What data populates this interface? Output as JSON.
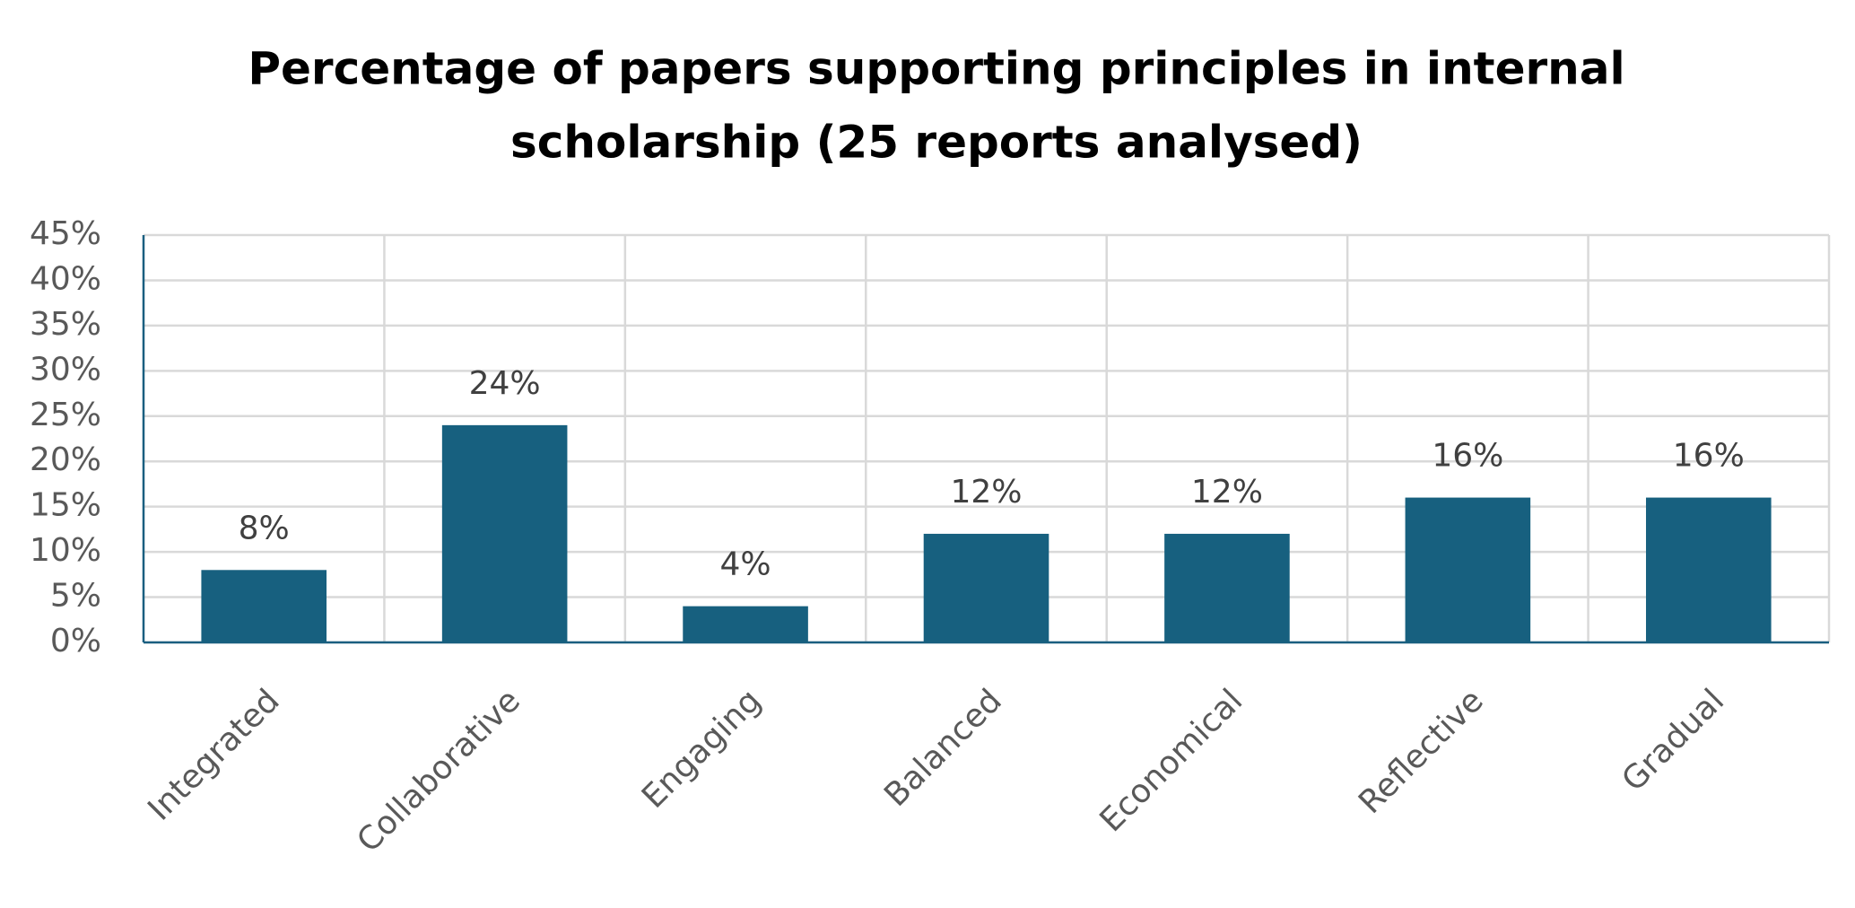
{
  "chart_data": {
    "type": "bar",
    "title": [
      "Percentage of papers supporting principles in internal",
      "scholarship (25 reports analysed)"
    ],
    "categories": [
      "Integrated",
      "Collaborative",
      "Engaging",
      "Balanced",
      "Economical",
      "Reflective",
      "Gradual"
    ],
    "values": [
      8,
      24,
      4,
      12,
      12,
      16,
      16
    ],
    "value_labels": [
      "8%",
      "24%",
      "4%",
      "12%",
      "12%",
      "16%",
      "16%"
    ],
    "color": "#17607f",
    "ylim": [
      0,
      45
    ],
    "yticks": [
      {
        "value": 0,
        "label": "0%"
      },
      {
        "value": 5,
        "label": "5%"
      },
      {
        "value": 10,
        "label": "10%"
      },
      {
        "value": 15,
        "label": "15%"
      },
      {
        "value": 20,
        "label": "20%"
      },
      {
        "value": 25,
        "label": "25%"
      },
      {
        "value": 30,
        "label": "30%"
      },
      {
        "value": 35,
        "label": "35%"
      },
      {
        "value": 40,
        "label": "40%"
      },
      {
        "value": 45,
        "label": "45%"
      }
    ],
    "grid": true
  }
}
